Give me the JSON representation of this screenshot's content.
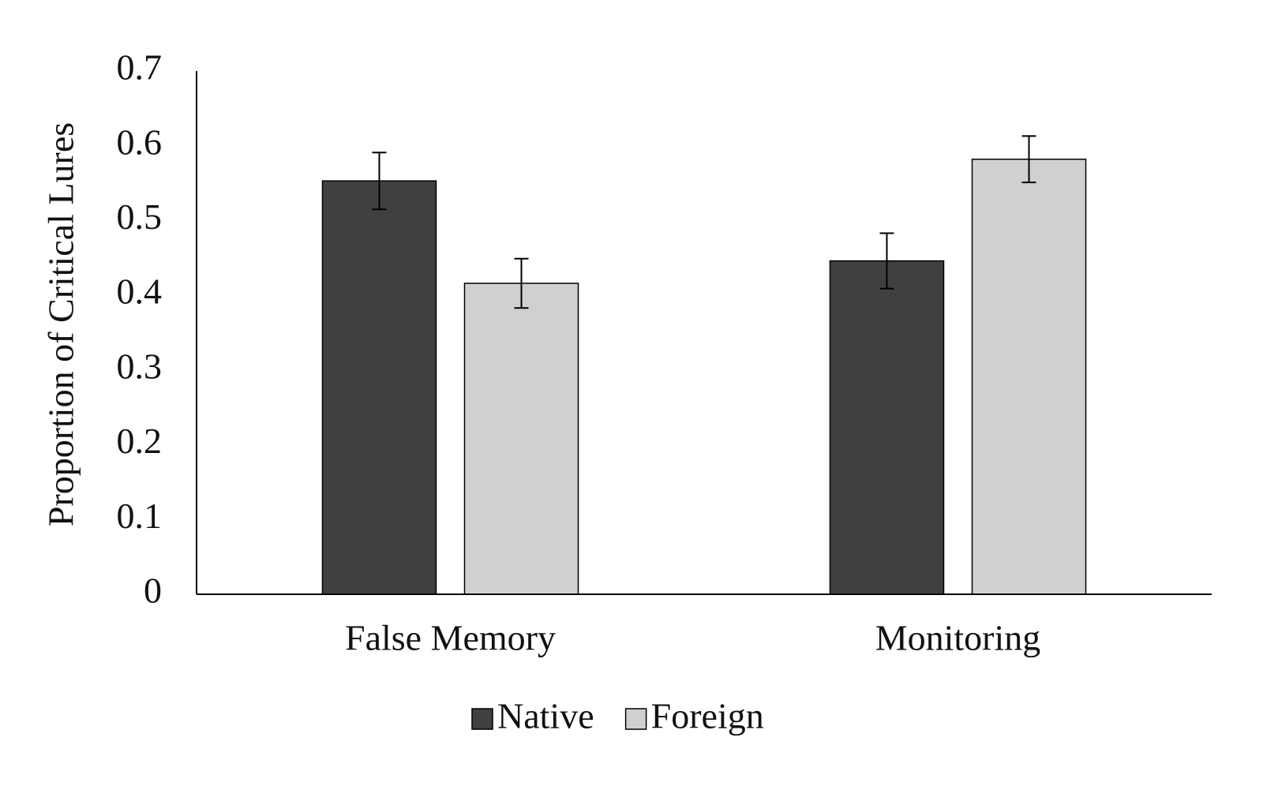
{
  "chart_data": {
    "type": "bar",
    "y_label": "Proportion of Critical Lures",
    "categories": [
      "False Memory",
      "Monitoring"
    ],
    "series": [
      {
        "name": "Native",
        "color": "#404040",
        "values": [
          0.553,
          0.446
        ],
        "errors": [
          0.038,
          0.037
        ]
      },
      {
        "name": "Foreign",
        "color": "#d0d0d0",
        "values": [
          0.416,
          0.582
        ],
        "errors": [
          0.033,
          0.031
        ]
      }
    ],
    "ylim": [
      0,
      0.7
    ],
    "yticks": [
      0,
      0.1,
      0.2,
      0.3,
      0.4,
      0.5,
      0.6,
      0.7
    ],
    "grid": false,
    "legend": "bottom"
  }
}
